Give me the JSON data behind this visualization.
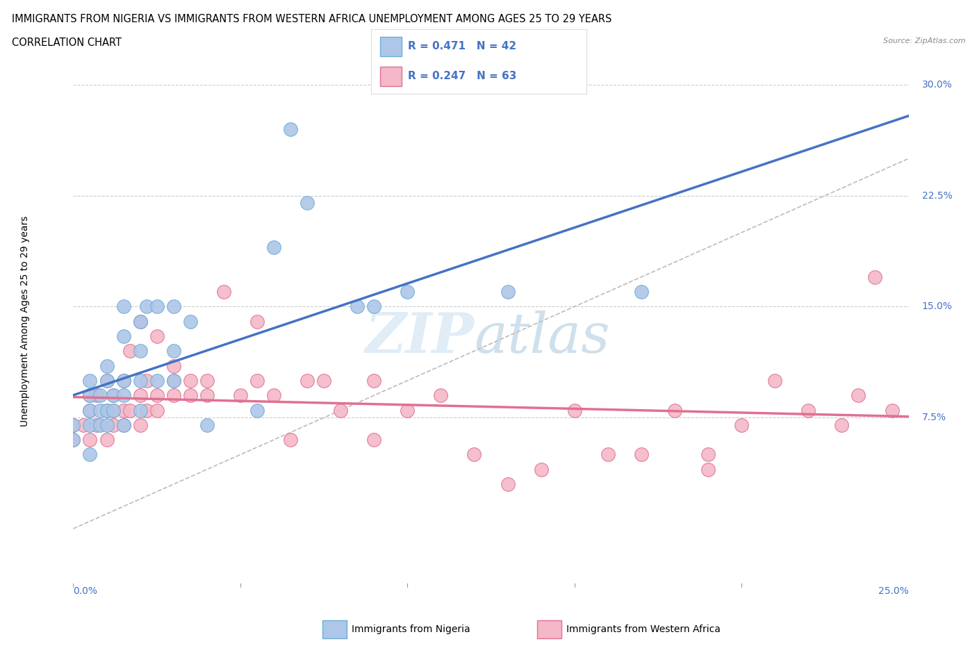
{
  "title_line1": "IMMIGRANTS FROM NIGERIA VS IMMIGRANTS FROM WESTERN AFRICA UNEMPLOYMENT AMONG AGES 25 TO 29 YEARS",
  "title_line2": "CORRELATION CHART",
  "source_text": "Source: ZipAtlas.com",
  "ylabel": "Unemployment Among Ages 25 to 29 years",
  "xlim": [
    0.0,
    0.25
  ],
  "ylim": [
    -0.04,
    0.32
  ],
  "ytick_positions": [
    0.075,
    0.15,
    0.225,
    0.3
  ],
  "ytick_labels": [
    "7.5%",
    "15.0%",
    "22.5%",
    "30.0%"
  ],
  "grid_color": "#cccccc",
  "nigeria_color": "#aec6e8",
  "nigeria_edge": "#6aaed6",
  "western_color": "#f4b8c8",
  "western_edge": "#e07090",
  "nigeria_line_color": "#4472c4",
  "western_line_color": "#e07090",
  "diagonal_color": "#bbbbbb",
  "nigeria_points_x": [
    0.0,
    0.0,
    0.005,
    0.005,
    0.005,
    0.005,
    0.005,
    0.008,
    0.008,
    0.008,
    0.01,
    0.01,
    0.01,
    0.01,
    0.012,
    0.012,
    0.015,
    0.015,
    0.015,
    0.015,
    0.015,
    0.02,
    0.02,
    0.02,
    0.02,
    0.022,
    0.025,
    0.025,
    0.03,
    0.03,
    0.03,
    0.035,
    0.04,
    0.055,
    0.06,
    0.065,
    0.07,
    0.085,
    0.09,
    0.1,
    0.13,
    0.17
  ],
  "nigeria_points_y": [
    0.06,
    0.07,
    0.05,
    0.07,
    0.08,
    0.09,
    0.1,
    0.07,
    0.08,
    0.09,
    0.07,
    0.08,
    0.1,
    0.11,
    0.08,
    0.09,
    0.07,
    0.09,
    0.1,
    0.13,
    0.15,
    0.08,
    0.1,
    0.12,
    0.14,
    0.15,
    0.1,
    0.15,
    0.1,
    0.12,
    0.15,
    0.14,
    0.07,
    0.08,
    0.19,
    0.27,
    0.22,
    0.15,
    0.15,
    0.16,
    0.16,
    0.16
  ],
  "western_points_x": [
    0.0,
    0.0,
    0.003,
    0.005,
    0.005,
    0.005,
    0.007,
    0.007,
    0.01,
    0.01,
    0.01,
    0.012,
    0.012,
    0.012,
    0.015,
    0.015,
    0.015,
    0.017,
    0.017,
    0.02,
    0.02,
    0.02,
    0.022,
    0.022,
    0.025,
    0.025,
    0.025,
    0.03,
    0.03,
    0.03,
    0.035,
    0.035,
    0.04,
    0.04,
    0.045,
    0.05,
    0.055,
    0.055,
    0.06,
    0.065,
    0.07,
    0.075,
    0.08,
    0.09,
    0.09,
    0.1,
    0.11,
    0.12,
    0.13,
    0.14,
    0.15,
    0.16,
    0.17,
    0.18,
    0.19,
    0.19,
    0.2,
    0.21,
    0.22,
    0.23,
    0.235,
    0.24,
    0.245
  ],
  "western_points_y": [
    0.06,
    0.07,
    0.07,
    0.06,
    0.08,
    0.09,
    0.07,
    0.09,
    0.06,
    0.08,
    0.1,
    0.07,
    0.08,
    0.09,
    0.07,
    0.08,
    0.1,
    0.08,
    0.12,
    0.07,
    0.09,
    0.14,
    0.08,
    0.1,
    0.08,
    0.09,
    0.13,
    0.09,
    0.1,
    0.11,
    0.09,
    0.1,
    0.09,
    0.1,
    0.16,
    0.09,
    0.1,
    0.14,
    0.09,
    0.06,
    0.1,
    0.1,
    0.08,
    0.06,
    0.1,
    0.08,
    0.09,
    0.05,
    0.03,
    0.04,
    0.08,
    0.05,
    0.05,
    0.08,
    0.04,
    0.05,
    0.07,
    0.1,
    0.08,
    0.07,
    0.09,
    0.17,
    0.08
  ],
  "background_color": "#ffffff",
  "bottom_legend_nigeria": "Immigrants from Nigeria",
  "bottom_legend_western": "Immigrants from Western Africa",
  "legend_R_nigeria": "R = 0.471",
  "legend_N_nigeria": "N = 42",
  "legend_R_western": "R = 0.247",
  "legend_N_western": "N = 63",
  "label_color": "#4472c4",
  "watermark_zip_color": "#cce0f0",
  "watermark_atlas_color": "#b0cce0"
}
